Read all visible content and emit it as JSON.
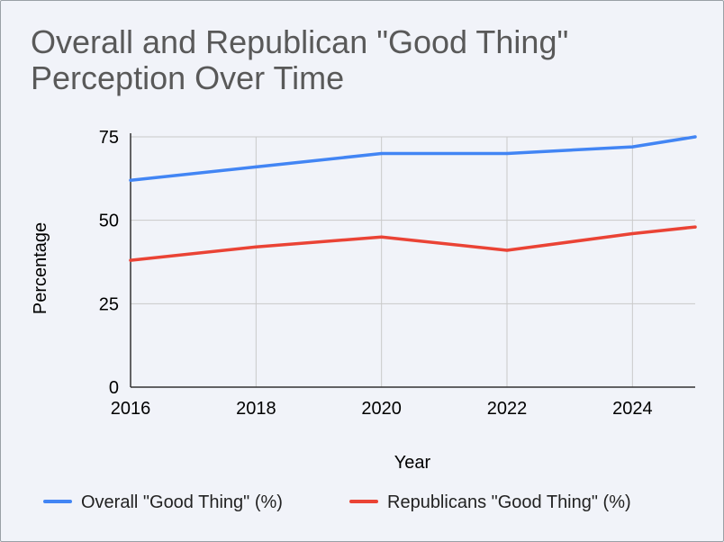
{
  "chart_data": {
    "type": "line",
    "title": "Overall and Republican \"Good Thing\" Perception Over Time",
    "xlabel": "Year",
    "ylabel": "Percentage",
    "xlim": [
      2016,
      2025
    ],
    "ylim": [
      0,
      75
    ],
    "x_ticks": [
      2016,
      2018,
      2020,
      2022,
      2024
    ],
    "y_ticks": [
      0,
      25,
      50,
      75
    ],
    "x_tick_labels": [
      "2016",
      "2018",
      "2020",
      "2022",
      "2024"
    ],
    "y_tick_labels": [
      "0",
      "25",
      "50",
      "75"
    ],
    "grid": true,
    "legend_position": "bottom",
    "x": [
      2016,
      2018,
      2020,
      2022,
      2024,
      2025
    ],
    "series": [
      {
        "name": "Overall \"Good Thing\" (%)",
        "color": "#4285f4",
        "values": [
          62,
          66,
          70,
          70,
          72,
          75
        ]
      },
      {
        "name": "Republicans \"Good Thing\" (%)",
        "color": "#ea4335",
        "values": [
          38,
          42,
          45,
          41,
          46,
          48
        ]
      }
    ]
  }
}
